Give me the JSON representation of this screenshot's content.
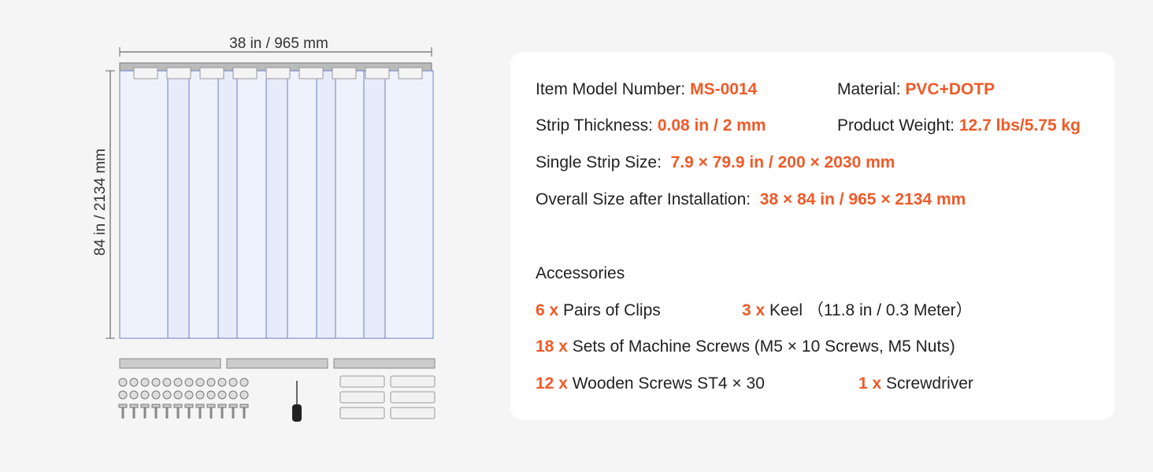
{
  "dimensions": {
    "width": "38 in / 965 mm",
    "height": "84 in / 2134 mm"
  },
  "specs": [
    {
      "label": "Item Model Number:",
      "value": "MS-0014"
    },
    {
      "label": "Material:",
      "value": "PVC+DOTP"
    },
    {
      "label": "Strip Thickness:",
      "value": "0.08 in / 2 mm"
    },
    {
      "label": "Product Weight:",
      "value": "12.7 lbs/5.75 kg"
    },
    {
      "label": "Single Strip Size:",
      "value": "7.9 × 79.9 in / 200 × 2030 mm"
    },
    {
      "label": "Overall Size after Installation:",
      "value": "38 × 84 in / 965 × 2134 mm"
    }
  ],
  "accessories": {
    "title": "Accessories",
    "items": [
      {
        "qty": "6 x",
        "name": "Pairs of Clips"
      },
      {
        "qty": "3 x",
        "name": "Keel",
        "note": "（11.8 in / 0.3 Meter）"
      },
      {
        "qty": "18 x",
        "name": "Sets of Machine Screws (M5 × 10 Screws, M5 Nuts)"
      },
      {
        "qty": "12 x",
        "name": "Wooden Screws ST4 × 30"
      },
      {
        "qty": "1 x",
        "name": "Screwdriver"
      }
    ]
  }
}
